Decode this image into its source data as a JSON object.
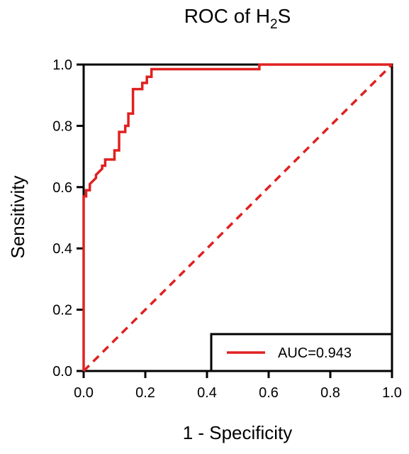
{
  "chart_data": {
    "type": "line",
    "title": "ROC of H",
    "title_subscript": "2",
    "title_suffix": "S",
    "xlabel": "1 - Specificity",
    "ylabel": "Sensitivity",
    "xlim": [
      0.0,
      1.0
    ],
    "ylim": [
      0.0,
      1.0
    ],
    "xticks": [
      "0.0",
      "0.2",
      "0.4",
      "0.6",
      "0.8",
      "1.0"
    ],
    "yticks": [
      "0.0",
      "0.2",
      "0.4",
      "0.6",
      "0.8",
      "1.0"
    ],
    "grid": false,
    "legend_position": "bottom-right",
    "series": [
      {
        "name": "AUC=0.943",
        "style": "solid",
        "color": "#e02020",
        "x": [
          0.0,
          0.0,
          0.008,
          0.008,
          0.02,
          0.02,
          0.04,
          0.04,
          0.06,
          0.06,
          0.07,
          0.07,
          0.1,
          0.1,
          0.115,
          0.115,
          0.135,
          0.135,
          0.145,
          0.145,
          0.16,
          0.16,
          0.19,
          0.19,
          0.205,
          0.205,
          0.22,
          0.22,
          0.57,
          0.57,
          1.0
        ],
        "y": [
          0.0,
          0.57,
          0.57,
          0.59,
          0.59,
          0.61,
          0.63,
          0.64,
          0.66,
          0.67,
          0.67,
          0.69,
          0.69,
          0.72,
          0.72,
          0.78,
          0.78,
          0.8,
          0.8,
          0.84,
          0.84,
          0.92,
          0.92,
          0.94,
          0.94,
          0.96,
          0.96,
          0.985,
          0.985,
          1.0,
          1.0
        ]
      },
      {
        "name": "",
        "style": "dashed",
        "color": "#e02020",
        "x": [
          0.0,
          1.0
        ],
        "y": [
          0.0,
          1.0
        ]
      }
    ],
    "legend": {
      "label": "AUC=0.943"
    }
  }
}
